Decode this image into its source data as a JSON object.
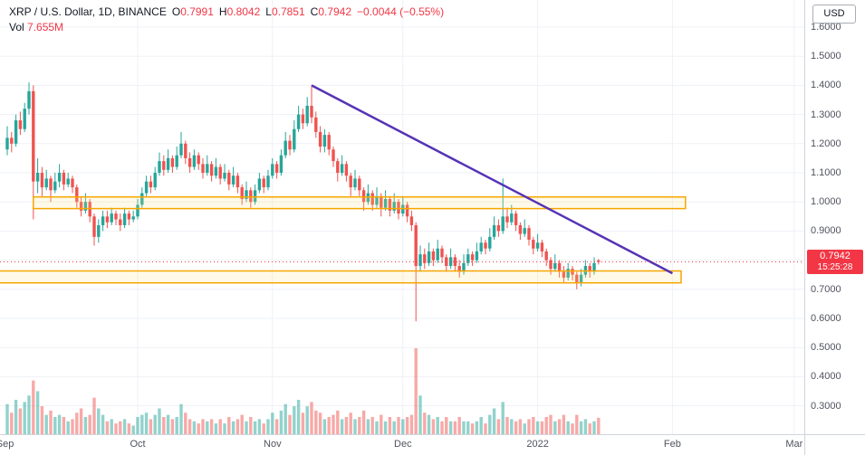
{
  "header": {
    "symbol_title": "XRP / U.S. Dollar, 1D, BINANCE",
    "o_label": "O",
    "o_value": "0.7991",
    "h_label": "H",
    "h_value": "0.8042",
    "l_label": "L",
    "l_value": "0.7851",
    "c_label": "C",
    "c_value": "0.7942",
    "change_value": "−0.0044 (−0.55%)",
    "vol_label": "Vol",
    "vol_value": "7.655M"
  },
  "price_axis": {
    "currency_button": "USD",
    "ticks": [
      "1.6000",
      "1.5000",
      "1.4000",
      "1.3000",
      "1.2000",
      "1.1000",
      "1.0000",
      "0.9000",
      "0.8000",
      "0.7000",
      "0.6000",
      "0.5000",
      "0.4000",
      "0.3000"
    ],
    "price_badge": {
      "price": "0.7942",
      "countdown": "15:25:28"
    }
  },
  "time_axis": {
    "ticks": [
      {
        "label": "Sep",
        "i": -0.5
      },
      {
        "label": "Oct",
        "i": 30
      },
      {
        "label": "Nov",
        "i": 61
      },
      {
        "label": "Dec",
        "i": 91
      },
      {
        "label": "2022",
        "i": 122
      },
      {
        "label": "Feb",
        "i": 153
      },
      {
        "label": "Mar",
        "i": 181
      }
    ]
  },
  "colors": {
    "up": "#26a69a",
    "down": "#ef5350",
    "volume_up": "rgba(38,166,154,0.5)",
    "volume_down": "rgba(239,83,80,0.5)",
    "trendline": "#5633b5",
    "box_stroke": "#f7a600",
    "box_fill": "rgba(255,225,130,0.18)",
    "price_line": "#f23645",
    "badge_bg": "#f23645",
    "grid": "#eef1f6",
    "axis_text": "#50535e",
    "text": "#131722",
    "negative": "#f23645"
  },
  "chart_data": {
    "type": "candlestick",
    "title": "XRP / U.S. Dollar, 1D, BINANCE",
    "symbol": "XRP/USD",
    "interval": "1D",
    "exchange": "BINANCE",
    "ylim": [
      0.27,
      1.66
    ],
    "visible_months": [
      "Sep",
      "Oct",
      "Nov",
      "Dec",
      "2022",
      "Feb",
      "Mar"
    ],
    "last_price": 0.7942,
    "last_ohlc": {
      "open": 0.7991,
      "high": 0.8042,
      "low": 0.7851,
      "close": 0.7942,
      "change": -0.0044,
      "change_pct": -0.55,
      "volume_m": 7.655
    },
    "volume_scale_max": 40,
    "candles": [
      [
        1.18,
        1.26,
        1.16,
        1.22,
        14
      ],
      [
        1.22,
        1.24,
        1.17,
        1.2,
        10
      ],
      [
        1.2,
        1.3,
        1.19,
        1.28,
        16
      ],
      [
        1.28,
        1.31,
        1.23,
        1.25,
        12
      ],
      [
        1.25,
        1.34,
        1.24,
        1.32,
        15
      ],
      [
        1.32,
        1.41,
        1.3,
        1.38,
        18
      ],
      [
        1.38,
        1.4,
        0.94,
        1.07,
        25
      ],
      [
        1.07,
        1.15,
        1.03,
        1.1,
        20
      ],
      [
        1.1,
        1.12,
        1.02,
        1.05,
        13
      ],
      [
        1.05,
        1.11,
        1.04,
        1.08,
        9
      ],
      [
        1.08,
        1.09,
        1.0,
        1.04,
        11
      ],
      [
        1.04,
        1.1,
        1.03,
        1.07,
        8
      ],
      [
        1.07,
        1.13,
        1.05,
        1.1,
        9
      ],
      [
        1.1,
        1.11,
        1.04,
        1.06,
        8
      ],
      [
        1.06,
        1.1,
        1.05,
        1.08,
        6
      ],
      [
        1.08,
        1.09,
        1.03,
        1.05,
        7
      ],
      [
        1.05,
        1.06,
        0.98,
        1.0,
        10
      ],
      [
        1.0,
        1.02,
        0.95,
        0.97,
        12
      ],
      [
        0.97,
        1.03,
        0.96,
        1.0,
        8
      ],
      [
        1.0,
        1.01,
        0.93,
        0.95,
        9
      ],
      [
        0.95,
        0.96,
        0.85,
        0.88,
        17
      ],
      [
        0.88,
        0.94,
        0.86,
        0.92,
        12
      ],
      [
        0.92,
        0.97,
        0.9,
        0.95,
        9
      ],
      [
        0.95,
        0.97,
        0.91,
        0.93,
        6
      ],
      [
        0.93,
        0.98,
        0.92,
        0.96,
        7
      ],
      [
        0.96,
        0.97,
        0.92,
        0.94,
        5
      ],
      [
        0.94,
        0.96,
        0.9,
        0.92,
        6
      ],
      [
        0.92,
        0.98,
        0.91,
        0.96,
        7
      ],
      [
        0.96,
        0.97,
        0.92,
        0.94,
        5
      ],
      [
        0.94,
        0.97,
        0.93,
        0.95,
        4
      ],
      [
        0.95,
        1.01,
        0.94,
        0.99,
        8
      ],
      [
        0.99,
        1.05,
        0.98,
        1.03,
        9
      ],
      [
        1.03,
        1.09,
        1.02,
        1.07,
        10
      ],
      [
        1.07,
        1.09,
        1.03,
        1.05,
        7
      ],
      [
        1.05,
        1.12,
        1.04,
        1.1,
        9
      ],
      [
        1.1,
        1.17,
        1.09,
        1.14,
        12
      ],
      [
        1.14,
        1.16,
        1.09,
        1.11,
        8
      ],
      [
        1.11,
        1.18,
        1.1,
        1.15,
        9
      ],
      [
        1.15,
        1.16,
        1.1,
        1.12,
        7
      ],
      [
        1.12,
        1.19,
        1.11,
        1.16,
        8
      ],
      [
        1.16,
        1.24,
        1.15,
        1.2,
        14
      ],
      [
        1.2,
        1.21,
        1.13,
        1.15,
        10
      ],
      [
        1.15,
        1.17,
        1.1,
        1.12,
        7
      ],
      [
        1.12,
        1.18,
        1.11,
        1.16,
        6
      ],
      [
        1.16,
        1.17,
        1.11,
        1.13,
        5
      ],
      [
        1.13,
        1.15,
        1.08,
        1.1,
        7
      ],
      [
        1.1,
        1.16,
        1.09,
        1.13,
        6
      ],
      [
        1.13,
        1.14,
        1.07,
        1.09,
        7
      ],
      [
        1.09,
        1.15,
        1.08,
        1.12,
        5
      ],
      [
        1.12,
        1.13,
        1.06,
        1.08,
        7
      ],
      [
        1.08,
        1.13,
        1.07,
        1.1,
        5
      ],
      [
        1.1,
        1.11,
        1.04,
        1.06,
        8
      ],
      [
        1.06,
        1.12,
        1.05,
        1.09,
        6
      ],
      [
        1.09,
        1.1,
        1.03,
        1.05,
        7
      ],
      [
        1.05,
        1.06,
        0.99,
        1.01,
        9
      ],
      [
        1.01,
        1.07,
        1.0,
        1.04,
        6
      ],
      [
        1.04,
        1.05,
        0.98,
        1.0,
        8
      ],
      [
        1.0,
        1.06,
        0.99,
        1.04,
        6
      ],
      [
        1.04,
        1.1,
        1.03,
        1.08,
        7
      ],
      [
        1.08,
        1.09,
        1.03,
        1.05,
        5
      ],
      [
        1.05,
        1.11,
        1.04,
        1.09,
        7
      ],
      [
        1.09,
        1.15,
        1.08,
        1.13,
        10
      ],
      [
        1.13,
        1.14,
        1.08,
        1.1,
        7
      ],
      [
        1.1,
        1.18,
        1.09,
        1.16,
        11
      ],
      [
        1.16,
        1.24,
        1.15,
        1.21,
        14
      ],
      [
        1.21,
        1.23,
        1.16,
        1.18,
        9
      ],
      [
        1.18,
        1.28,
        1.17,
        1.25,
        13
      ],
      [
        1.25,
        1.33,
        1.24,
        1.3,
        16
      ],
      [
        1.3,
        1.32,
        1.25,
        1.27,
        10
      ],
      [
        1.27,
        1.36,
        1.26,
        1.33,
        13
      ],
      [
        1.33,
        1.4,
        1.27,
        1.29,
        15
      ],
      [
        1.29,
        1.31,
        1.22,
        1.24,
        11
      ],
      [
        1.24,
        1.26,
        1.17,
        1.19,
        10
      ],
      [
        1.19,
        1.25,
        1.17,
        1.23,
        7
      ],
      [
        1.23,
        1.24,
        1.16,
        1.18,
        8
      ],
      [
        1.18,
        1.19,
        1.12,
        1.14,
        9
      ],
      [
        1.14,
        1.15,
        1.07,
        1.1,
        11
      ],
      [
        1.1,
        1.16,
        1.09,
        1.13,
        7
      ],
      [
        1.13,
        1.14,
        1.07,
        1.09,
        8
      ],
      [
        1.09,
        1.1,
        1.02,
        1.05,
        10
      ],
      [
        1.05,
        1.11,
        1.04,
        1.08,
        7
      ],
      [
        1.08,
        1.09,
        1.02,
        1.04,
        8
      ],
      [
        1.04,
        1.05,
        0.97,
        1.0,
        11
      ],
      [
        1.0,
        1.06,
        0.99,
        1.03,
        7
      ],
      [
        1.03,
        1.04,
        0.97,
        0.99,
        8
      ],
      [
        0.99,
        1.05,
        0.98,
        1.02,
        6
      ],
      [
        1.02,
        1.03,
        0.95,
        0.98,
        9
      ],
      [
        0.98,
        1.04,
        0.97,
        1.01,
        6
      ],
      [
        1.01,
        1.02,
        0.95,
        0.97,
        8
      ],
      [
        0.97,
        1.03,
        0.96,
        1.0,
        6
      ],
      [
        1.0,
        1.01,
        0.94,
        0.96,
        8
      ],
      [
        0.96,
        1.02,
        0.95,
        0.99,
        7
      ],
      [
        0.99,
        1.0,
        0.93,
        0.95,
        8
      ],
      [
        0.95,
        0.97,
        0.9,
        0.92,
        9
      ],
      [
        0.92,
        0.93,
        0.59,
        0.78,
        40
      ],
      [
        0.78,
        0.85,
        0.76,
        0.82,
        18
      ],
      [
        0.82,
        0.84,
        0.77,
        0.79,
        10
      ],
      [
        0.79,
        0.86,
        0.78,
        0.83,
        9
      ],
      [
        0.83,
        0.84,
        0.78,
        0.8,
        7
      ],
      [
        0.8,
        0.87,
        0.79,
        0.84,
        8
      ],
      [
        0.84,
        0.85,
        0.79,
        0.81,
        6
      ],
      [
        0.81,
        0.82,
        0.76,
        0.78,
        8
      ],
      [
        0.78,
        0.84,
        0.77,
        0.81,
        6
      ],
      [
        0.81,
        0.82,
        0.76,
        0.78,
        6
      ],
      [
        0.78,
        0.8,
        0.74,
        0.76,
        8
      ],
      [
        0.76,
        0.82,
        0.75,
        0.79,
        6
      ],
      [
        0.79,
        0.84,
        0.78,
        0.82,
        6
      ],
      [
        0.82,
        0.83,
        0.78,
        0.8,
        5
      ],
      [
        0.8,
        0.86,
        0.79,
        0.83,
        6
      ],
      [
        0.83,
        0.88,
        0.82,
        0.86,
        8
      ],
      [
        0.86,
        0.87,
        0.82,
        0.84,
        5
      ],
      [
        0.84,
        0.91,
        0.83,
        0.88,
        9
      ],
      [
        0.88,
        0.95,
        0.87,
        0.92,
        12
      ],
      [
        0.92,
        0.94,
        0.88,
        0.9,
        7
      ],
      [
        0.9,
        1.08,
        0.89,
        0.95,
        15
      ],
      [
        0.95,
        0.98,
        0.91,
        0.93,
        8
      ],
      [
        0.93,
        0.99,
        0.92,
        0.96,
        7
      ],
      [
        0.96,
        0.97,
        0.9,
        0.92,
        6
      ],
      [
        0.92,
        0.93,
        0.87,
        0.89,
        7
      ],
      [
        0.89,
        0.94,
        0.88,
        0.91,
        5
      ],
      [
        0.91,
        0.92,
        0.85,
        0.87,
        7
      ],
      [
        0.87,
        0.88,
        0.82,
        0.84,
        8
      ],
      [
        0.84,
        0.89,
        0.83,
        0.86,
        6
      ],
      [
        0.86,
        0.87,
        0.81,
        0.83,
        6
      ],
      [
        0.83,
        0.84,
        0.78,
        0.8,
        8
      ],
      [
        0.8,
        0.81,
        0.75,
        0.77,
        9
      ],
      [
        0.77,
        0.82,
        0.76,
        0.79,
        6
      ],
      [
        0.79,
        0.8,
        0.74,
        0.76,
        7
      ],
      [
        0.76,
        0.78,
        0.72,
        0.74,
        9
      ],
      [
        0.74,
        0.79,
        0.73,
        0.77,
        6
      ],
      [
        0.77,
        0.78,
        0.73,
        0.75,
        5
      ],
      [
        0.75,
        0.76,
        0.7,
        0.72,
        9
      ],
      [
        0.72,
        0.77,
        0.71,
        0.75,
        6
      ],
      [
        0.75,
        0.8,
        0.74,
        0.78,
        7
      ],
      [
        0.78,
        0.79,
        0.74,
        0.76,
        5
      ],
      [
        0.76,
        0.81,
        0.75,
        0.79,
        6
      ],
      [
        0.7991,
        0.8042,
        0.7851,
        0.7942,
        7.655
      ]
    ],
    "annotations": {
      "trendline": {
        "from_index": 70,
        "from_price": 1.4,
        "to_index": 153,
        "to_price": 0.755
      },
      "boxes": [
        {
          "from_index": 6,
          "to_index": 156,
          "top_price": 1.017,
          "bottom_price": 0.977
        },
        {
          "from_index": -2,
          "to_index": 155,
          "top_price": 0.763,
          "bottom_price": 0.722
        }
      ]
    }
  }
}
